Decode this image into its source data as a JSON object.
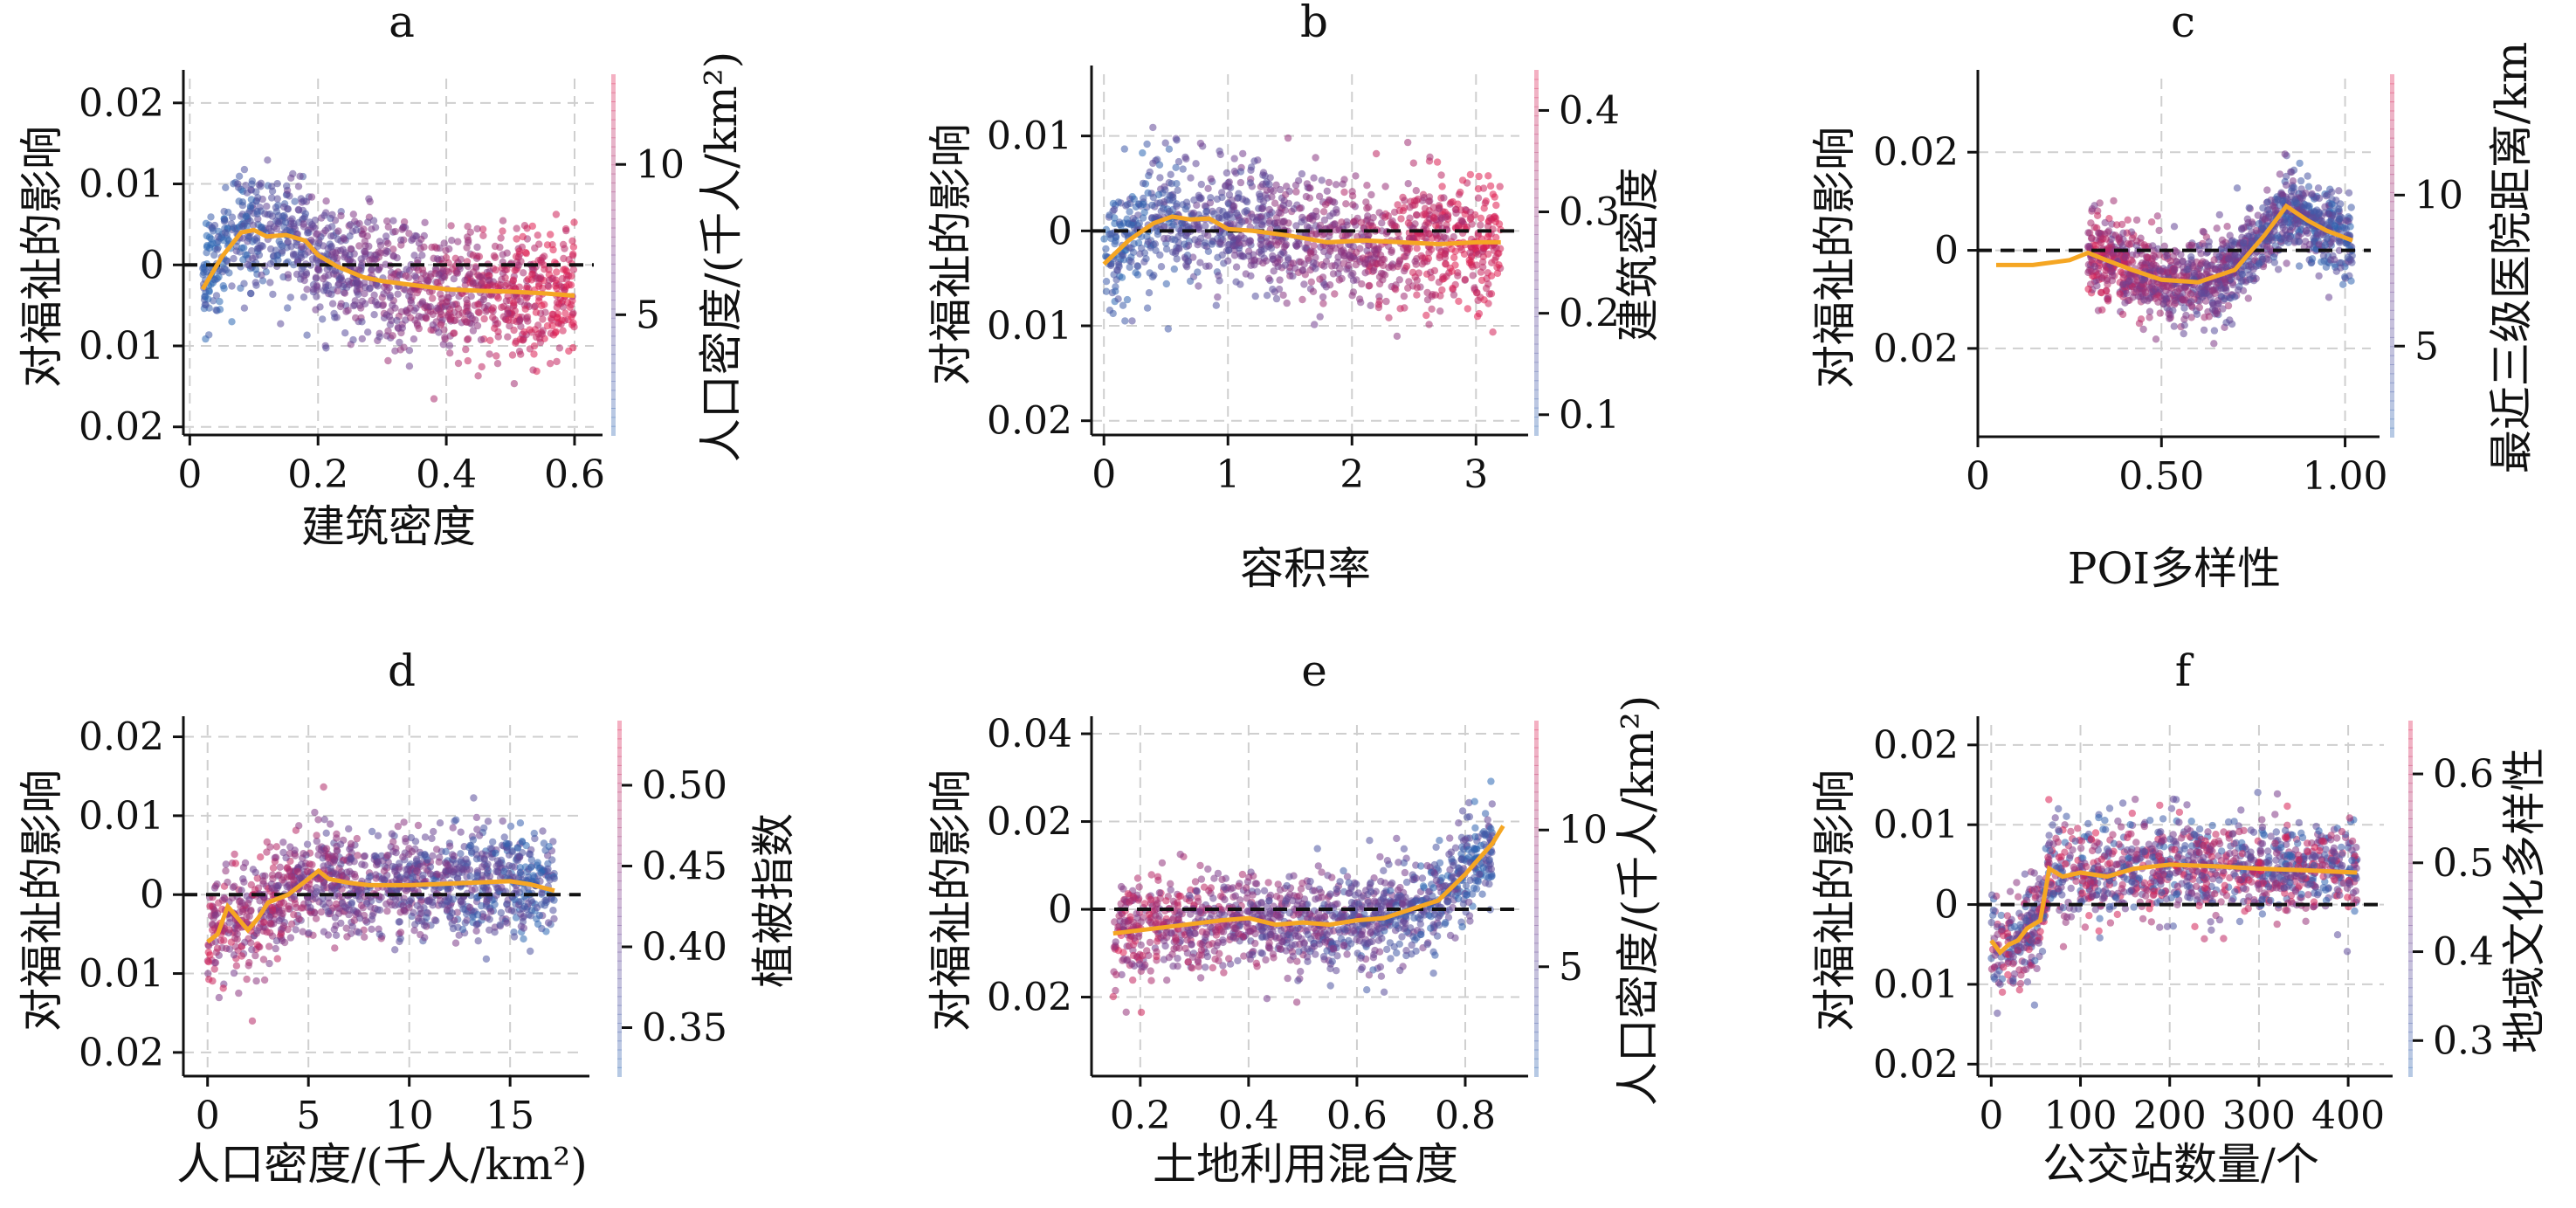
{
  "figure": {
    "y_label": "对福祉的影响"
  },
  "chart_data": [
    {
      "type": "scatter",
      "title": "a",
      "xlabel": "建筑密度",
      "ylabel": "对福祉的影响",
      "colorbar_label": "人口密度/(千人/km²)",
      "x_ticks": [
        0,
        0.2,
        0.4,
        0.6
      ],
      "x_tick_labels": [
        "0",
        "0.2",
        "0.4",
        "0.6"
      ],
      "xlim": [
        -0.01,
        0.63
      ],
      "y_ticks": [
        0.02,
        0.01,
        0,
        -0.01,
        -0.02
      ],
      "y_tick_labels": [
        "0.02",
        "0.01",
        "0",
        "0.01",
        "0.02"
      ],
      "ylim": [
        -0.021,
        0.023
      ],
      "c_ticks": [
        5,
        10
      ],
      "c_tick_labels": [
        "5",
        "10"
      ],
      "clim": [
        1,
        13
      ],
      "grid": true,
      "trend": {
        "x": [
          0.02,
          0.05,
          0.08,
          0.1,
          0.12,
          0.15,
          0.18,
          0.2,
          0.23,
          0.27,
          0.3,
          0.35,
          0.4,
          0.45,
          0.5,
          0.55,
          0.6
        ],
        "y": [
          -0.003,
          0.001,
          0.004,
          0.0043,
          0.0035,
          0.0037,
          0.003,
          0.0012,
          -0.0002,
          -0.0015,
          -0.002,
          -0.0025,
          -0.003,
          -0.0032,
          -0.0033,
          -0.0035,
          -0.0038
        ]
      },
      "cloud": {
        "x_range": [
          0.02,
          0.6
        ],
        "spread": 0.007,
        "color_trend": "low-to-high"
      }
    },
    {
      "type": "scatter",
      "title": "b",
      "xlabel": "容积率",
      "ylabel": "对福祉的影响",
      "colorbar_label": "建筑密度",
      "x_ticks": [
        0,
        1,
        2,
        3
      ],
      "x_tick_labels": [
        "0",
        "1",
        "2",
        "3"
      ],
      "xlim": [
        -0.1,
        3.35
      ],
      "y_ticks": [
        0.01,
        0,
        -0.01,
        -0.02
      ],
      "y_tick_labels": [
        "0.01",
        "0",
        "0.01",
        "0.02"
      ],
      "ylim": [
        -0.0215,
        0.0165
      ],
      "c_ticks": [
        0.1,
        0.2,
        0.3,
        0.4
      ],
      "c_tick_labels": [
        "0.1",
        "0.2",
        "0.3",
        "0.4"
      ],
      "clim": [
        0.08,
        0.44
      ],
      "grid": true,
      "trend": {
        "x": [
          0,
          0.2,
          0.4,
          0.55,
          0.7,
          0.85,
          1.0,
          1.2,
          1.5,
          1.8,
          2.1,
          2.4,
          2.7,
          3.0,
          3.2
        ],
        "y": [
          -0.0035,
          -0.001,
          0.0008,
          0.0015,
          0.0012,
          0.0013,
          0.0002,
          0,
          -0.0005,
          -0.0012,
          -0.001,
          -0.0012,
          -0.0014,
          -0.0012,
          -0.0012
        ]
      },
      "cloud": {
        "x_range": [
          0,
          3.2
        ],
        "spread": 0.006,
        "color_trend": "low-to-high"
      }
    },
    {
      "type": "scatter",
      "title": "c",
      "xlabel": "POI多样性",
      "ylabel": "对福祉的影响",
      "colorbar_label": "最近三级医院距离/km",
      "x_ticks": [
        0,
        0.5,
        1.0
      ],
      "x_tick_labels": [
        "0",
        "0.50",
        "1.00"
      ],
      "xlim": [
        0,
        1.07
      ],
      "y_ticks": [
        0.02,
        0,
        -0.02
      ],
      "y_tick_labels": [
        "0.02",
        "0",
        "0.02"
      ],
      "ylim": [
        -0.038,
        0.035
      ],
      "c_ticks": [
        5,
        10
      ],
      "c_tick_labels": [
        "5",
        "10"
      ],
      "clim": [
        2,
        14
      ],
      "grid": true,
      "trend": {
        "x": [
          0.05,
          0.15,
          0.25,
          0.3,
          0.35,
          0.42,
          0.5,
          0.6,
          0.7,
          0.78,
          0.84,
          0.9,
          0.95,
          1.02
        ],
        "y": [
          -0.003,
          -0.003,
          -0.002,
          -0.0005,
          -0.002,
          -0.004,
          -0.006,
          -0.0065,
          -0.004,
          0.003,
          0.009,
          0.006,
          0.004,
          0.002
        ]
      },
      "cloud": {
        "x_range": [
          0.3,
          1.02
        ],
        "spread": 0.008,
        "color_trend": "high-to-low"
      }
    },
    {
      "type": "scatter",
      "title": "d",
      "xlabel": "人口密度/(千人/km²)",
      "ylabel": "对福祉的影响",
      "colorbar_label": "植被指数",
      "x_ticks": [
        0,
        5,
        10,
        15
      ],
      "x_tick_labels": [
        "0",
        "5",
        "10",
        "15"
      ],
      "xlim": [
        -1.2,
        18.5
      ],
      "y_ticks": [
        0.02,
        0.01,
        0,
        -0.01,
        -0.02
      ],
      "y_tick_labels": [
        "0.02",
        "0.01",
        "0",
        "0.01",
        "0.02"
      ],
      "ylim": [
        -0.023,
        0.0215
      ],
      "c_ticks": [
        0.35,
        0.4,
        0.45,
        0.5
      ],
      "c_tick_labels": [
        "0.35",
        "0.40",
        "0.45",
        "0.50"
      ],
      "clim": [
        0.32,
        0.54
      ],
      "grid": true,
      "trend": {
        "x": [
          0,
          0.5,
          1,
          1.5,
          2,
          2.5,
          3,
          4,
          5,
          5.5,
          6,
          7,
          8,
          10,
          12,
          14,
          15,
          16,
          17.2
        ],
        "y": [
          -0.006,
          -0.005,
          -0.0015,
          -0.003,
          -0.0045,
          -0.003,
          -0.001,
          0,
          0.002,
          0.003,
          0.002,
          0.0015,
          0.0012,
          0.0012,
          0.0014,
          0.0016,
          0.0017,
          0.0013,
          0.0005
        ]
      },
      "cloud": {
        "x_range": [
          0,
          17.2
        ],
        "spread": 0.006,
        "color_trend": "high-to-low"
      }
    },
    {
      "type": "scatter",
      "title": "e",
      "xlabel": "土地利用混合度",
      "ylabel": "对福祉的影响",
      "colorbar_label": "人口密度/(千人/km²)",
      "x_ticks": [
        0.2,
        0.4,
        0.6,
        0.8
      ],
      "x_tick_labels": [
        "0.2",
        "0.4",
        "0.6",
        "0.8"
      ],
      "xlim": [
        0.11,
        0.9
      ],
      "y_ticks": [
        0.04,
        0.02,
        0,
        -0.02
      ],
      "y_tick_labels": [
        "0.04",
        "0.02",
        "0",
        "0.02"
      ],
      "ylim": [
        -0.038,
        0.042
      ],
      "c_ticks": [
        5,
        10
      ],
      "c_tick_labels": [
        "5",
        "10"
      ],
      "clim": [
        1,
        14
      ],
      "grid": true,
      "trend": {
        "x": [
          0.15,
          0.25,
          0.35,
          0.4,
          0.45,
          0.5,
          0.55,
          0.6,
          0.65,
          0.7,
          0.75,
          0.8,
          0.85,
          0.87
        ],
        "y": [
          -0.0055,
          -0.004,
          -0.0025,
          -0.002,
          -0.0035,
          -0.003,
          -0.0035,
          -0.0025,
          -0.002,
          0,
          0.002,
          0.008,
          0.015,
          0.019
        ]
      },
      "cloud": {
        "x_range": [
          0.15,
          0.85
        ],
        "spread": 0.01,
        "color_trend": "high-to-low"
      }
    },
    {
      "type": "scatter",
      "title": "f",
      "xlabel": "公交站数量/个",
      "ylabel": "对福祉的影响",
      "colorbar_label": "地域文化多样性",
      "x_ticks": [
        0,
        100,
        200,
        300,
        400
      ],
      "x_tick_labels": [
        "0",
        "100",
        "200",
        "300",
        "400"
      ],
      "xlim": [
        -15,
        440
      ],
      "y_ticks": [
        0.02,
        0.01,
        0,
        -0.01,
        -0.02
      ],
      "y_tick_labels": [
        "0.02",
        "0.01",
        "0",
        "0.01",
        "0.02"
      ],
      "ylim": [
        -0.0215,
        0.0225
      ],
      "c_ticks": [
        0.3,
        0.4,
        0.5,
        0.6
      ],
      "c_tick_labels": [
        "0.3",
        "0.4",
        "0.5",
        "0.6"
      ],
      "clim": [
        0.26,
        0.66
      ],
      "grid": true,
      "trend": {
        "x": [
          0,
          10,
          20,
          30,
          40,
          55,
          65,
          80,
          100,
          130,
          160,
          200,
          250,
          300,
          350,
          410
        ],
        "y": [
          -0.0045,
          -0.006,
          -0.005,
          -0.0045,
          -0.003,
          -0.002,
          0.0045,
          0.0035,
          0.004,
          0.0035,
          0.0045,
          0.005,
          0.0048,
          0.0045,
          0.0043,
          0.004
        ]
      },
      "cloud": {
        "x_range": [
          0,
          410
        ],
        "spread": 0.0055,
        "color_trend": "mixed"
      }
    }
  ]
}
